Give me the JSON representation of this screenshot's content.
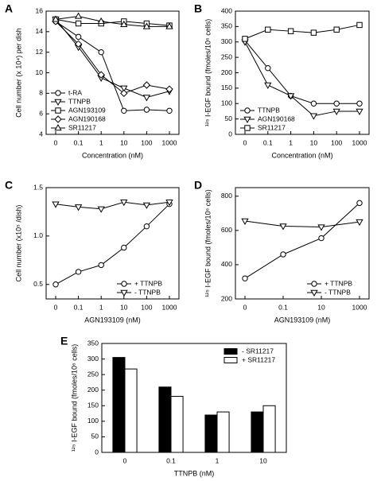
{
  "chart_data": [
    {
      "type": "line",
      "label": "A",
      "y_label": "Cell number (x 10⁴) per dish",
      "x_label": "Concentration (nM)",
      "categories": [
        "0",
        "0.1",
        "1",
        "10",
        "100",
        "1000"
      ],
      "ylim": [
        4,
        16
      ],
      "yticks": [
        4,
        6,
        8,
        10,
        12,
        14,
        16
      ],
      "legend": "lower left",
      "series": [
        {
          "name": "t-RA",
          "marker": "circle",
          "color": "#000000",
          "values": [
            15.0,
            13.5,
            12.0,
            6.3,
            6.4,
            6.3
          ]
        },
        {
          "name": "TTNPB",
          "marker": "triangle-down",
          "color": "#000000",
          "values": [
            15.2,
            12.5,
            9.5,
            8.5,
            7.6,
            8.2
          ]
        },
        {
          "name": "AGN193109",
          "marker": "square",
          "color": "#000000",
          "values": [
            15.2,
            14.8,
            14.8,
            15.0,
            14.8,
            14.6
          ]
        },
        {
          "name": "AGN190168",
          "marker": "diamond",
          "color": "#000000",
          "values": [
            15.0,
            12.8,
            9.8,
            8.0,
            8.8,
            8.4
          ]
        },
        {
          "name": "SR11217",
          "marker": "triangle-up",
          "color": "#000000",
          "values": [
            15.2,
            15.5,
            15.0,
            14.7,
            14.5,
            14.5
          ]
        }
      ]
    },
    {
      "type": "line",
      "label": "B",
      "y_label": "¹²⁵ I-EGF bound (fmoles/10⁶ cells)",
      "x_label": "Concentration (nM)",
      "categories": [
        "0",
        "0.1",
        "1",
        "10",
        "100",
        "1000"
      ],
      "ylim": [
        0,
        400
      ],
      "yticks": [
        0,
        50,
        100,
        150,
        200,
        250,
        300,
        350,
        400
      ],
      "legend": "lower left",
      "series": [
        {
          "name": "TTNPB",
          "marker": "circle",
          "color": "#000000",
          "values": [
            305,
            215,
            125,
            100,
            100,
            100
          ]
        },
        {
          "name": "AGN190168",
          "marker": "triangle-down",
          "color": "#000000",
          "values": [
            300,
            160,
            125,
            60,
            75,
            75
          ]
        },
        {
          "name": "SR11217",
          "marker": "square",
          "color": "#000000",
          "values": [
            310,
            340,
            335,
            330,
            340,
            355
          ]
        }
      ]
    },
    {
      "type": "line",
      "label": "C",
      "y_label": "Cell number (x10⁵ /dish)",
      "x_label": "AGN193109 (nM)",
      "categories": [
        "0",
        "0.1",
        "1",
        "10",
        "100",
        "1000"
      ],
      "ylim": [
        0.35,
        1.5
      ],
      "yticks": [
        0.5,
        {
          "value": 1,
          "label": "1.0"
        },
        1.5
      ],
      "legend": "lower right",
      "series": [
        {
          "name": "+ TTNPB",
          "marker": "circle",
          "color": "#000000",
          "values": [
            0.5,
            0.63,
            0.7,
            0.88,
            1.1,
            1.33
          ]
        },
        {
          "name": "- TTNPB",
          "marker": "triangle-down",
          "color": "#000000",
          "values": [
            1.33,
            1.3,
            1.28,
            1.35,
            1.32,
            1.35
          ]
        }
      ]
    },
    {
      "type": "line",
      "label": "D",
      "y_label": "¹²⁵ I-EGF bound (fmoles/10⁶ cells)",
      "x_label": "AGN193109 (nM)",
      "categories": [
        "0",
        "0.1",
        "10",
        "1000"
      ],
      "ylim": [
        200,
        850
      ],
      "yticks": [
        200,
        400,
        600,
        800
      ],
      "legend": "lower right",
      "series": [
        {
          "name": "+ TTNPB",
          "marker": "circle",
          "color": "#000000",
          "values": [
            320,
            460,
            555,
            760
          ]
        },
        {
          "name": "- TTNPB",
          "marker": "triangle-down",
          "color": "#000000",
          "values": [
            655,
            625,
            620,
            650
          ]
        }
      ]
    },
    {
      "type": "bar",
      "label": "E",
      "y_label": "¹²⁵ I-EGF bound (fmoles/10⁶ cells)",
      "x_label": "TTNPB  (nM)",
      "categories": [
        "0",
        "0.1",
        "1",
        "10"
      ],
      "ylim": [
        0,
        350
      ],
      "yticks": [
        0,
        50,
        100,
        150,
        200,
        250,
        300,
        350
      ],
      "legend": "upper right",
      "series": [
        {
          "name": "- SR11217",
          "color": "#000000",
          "values": [
            305,
            210,
            120,
            130
          ]
        },
        {
          "name": "+ SR11217",
          "color": "#ffffff",
          "values": [
            268,
            180,
            130,
            150
          ]
        }
      ]
    }
  ]
}
